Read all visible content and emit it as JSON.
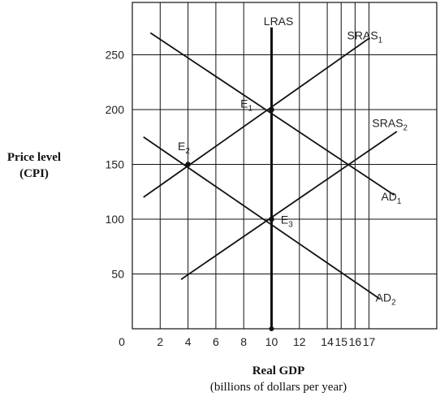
{
  "chart_data": {
    "type": "line",
    "xlabel": "Real GDP",
    "xlabel_sub": "(billions of dollars per year)",
    "ylabel_line1": "Price level",
    "ylabel_line2": "(CPI)",
    "origin_label": "0",
    "x_ticks": [
      {
        "value": 2,
        "label": "2"
      },
      {
        "value": 4,
        "label": "4"
      },
      {
        "value": 6,
        "label": "6"
      },
      {
        "value": 8,
        "label": "8"
      },
      {
        "value": 10,
        "label": "10"
      },
      {
        "value": 12,
        "label": "12"
      },
      {
        "value": 14,
        "label": "14"
      },
      {
        "value": 15,
        "label": "15"
      },
      {
        "value": 16,
        "label": "16"
      },
      {
        "value": 17,
        "label": "17"
      }
    ],
    "y_ticks": [
      {
        "value": 50,
        "label": "50"
      },
      {
        "value": 100,
        "label": "100"
      },
      {
        "value": 150,
        "label": "150"
      },
      {
        "value": 200,
        "label": "200"
      },
      {
        "value": 250,
        "label": "250"
      }
    ],
    "xlim": [
      0,
      19
    ],
    "ylim": [
      0,
      300
    ],
    "grid": true,
    "series": [
      {
        "name": "LRAS",
        "sub": "",
        "points": [
          [
            10,
            275
          ],
          [
            10,
            0
          ]
        ],
        "bold": true
      },
      {
        "name": "SRAS",
        "sub": "1",
        "points": [
          [
            0.8,
            120
          ],
          [
            17,
            265
          ]
        ],
        "bold": false
      },
      {
        "name": "SRAS",
        "sub": "2",
        "points": [
          [
            3.5,
            45
          ],
          [
            19,
            180
          ]
        ],
        "bold": false
      },
      {
        "name": "AD",
        "sub": "1",
        "points": [
          [
            1.3,
            270
          ],
          [
            18.8,
            122
          ]
        ],
        "bold": false
      },
      {
        "name": "AD",
        "sub": "2",
        "points": [
          [
            0.8,
            175
          ],
          [
            17.8,
            27
          ]
        ],
        "bold": false
      }
    ],
    "series_labels": [
      {
        "name": "LRAS",
        "sub": "",
        "at": [
          10.5,
          277
        ]
      },
      {
        "name": "SRAS",
        "sub": "1",
        "at": [
          16.7,
          264
        ]
      },
      {
        "name": "SRAS",
        "sub": "2",
        "at": [
          18.5,
          184
        ]
      },
      {
        "name": "AD",
        "sub": "1",
        "at": [
          18.6,
          117
        ]
      },
      {
        "name": "AD",
        "sub": "2",
        "at": [
          18.2,
          25
        ]
      }
    ],
    "points": [
      {
        "name": "E",
        "sub": "1",
        "x": 10,
        "y": 200,
        "dot": true,
        "label_at": [
          8.2,
          202
        ]
      },
      {
        "name": "E",
        "sub": "2",
        "x": 4,
        "y": 150,
        "dot": true,
        "label_at": [
          3.7,
          163
        ]
      },
      {
        "name": "E",
        "sub": "3",
        "x": 10,
        "y": 100,
        "dot": true,
        "label_at": [
          11.1,
          96
        ]
      },
      {
        "name": "",
        "sub": "",
        "x": 15,
        "y": 150,
        "dot": false,
        "label_at": null
      }
    ]
  }
}
